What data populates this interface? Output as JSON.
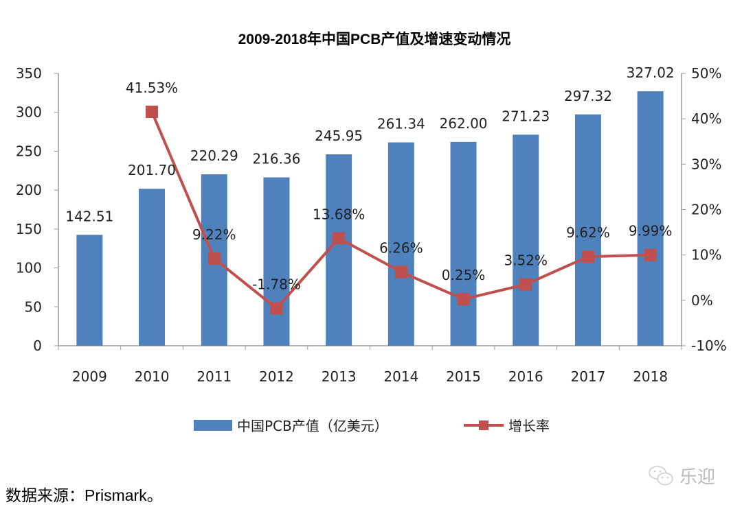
{
  "chart_data": {
    "type": "bar+line",
    "title": "2009-2018年中国PCB产值及增速变动情况",
    "categories": [
      "2009",
      "2010",
      "2011",
      "2012",
      "2013",
      "2014",
      "2015",
      "2016",
      "2017",
      "2018"
    ],
    "series": [
      {
        "name": "中国PCB产值（亿美元）",
        "type": "bar",
        "axis": "left",
        "color": "#4F81BD",
        "values": [
          142.51,
          201.7,
          220.29,
          216.36,
          245.95,
          261.34,
          262.0,
          271.23,
          297.32,
          327.02
        ],
        "labels": [
          "142.51",
          "201.70",
          "220.29",
          "216.36",
          "245.95",
          "261.34",
          "262.00",
          "271.23",
          "297.32",
          "327.02"
        ]
      },
      {
        "name": "增长率",
        "type": "line",
        "axis": "right",
        "color": "#C0504D",
        "values": [
          null,
          41.53,
          9.22,
          -1.78,
          13.68,
          6.26,
          0.25,
          3.52,
          9.62,
          9.99
        ],
        "labels": [
          null,
          "41.53%",
          "9.22%",
          "-1.78%",
          "13.68%",
          "6.26%",
          "0.25%",
          "3.52%",
          "9.62%",
          "9.99%"
        ]
      }
    ],
    "y_left": {
      "range": [
        0,
        350
      ],
      "ticks": [
        "0",
        "50",
        "100",
        "150",
        "200",
        "250",
        "300",
        "350"
      ]
    },
    "y_right": {
      "range": [
        -10,
        50
      ],
      "ticks": [
        "-10%",
        "0%",
        "10%",
        "20%",
        "30%",
        "40%",
        "50%"
      ]
    },
    "grid": false,
    "legend": "bottom"
  },
  "source": "数据来源：Prismark。",
  "watermark": "乐迎"
}
